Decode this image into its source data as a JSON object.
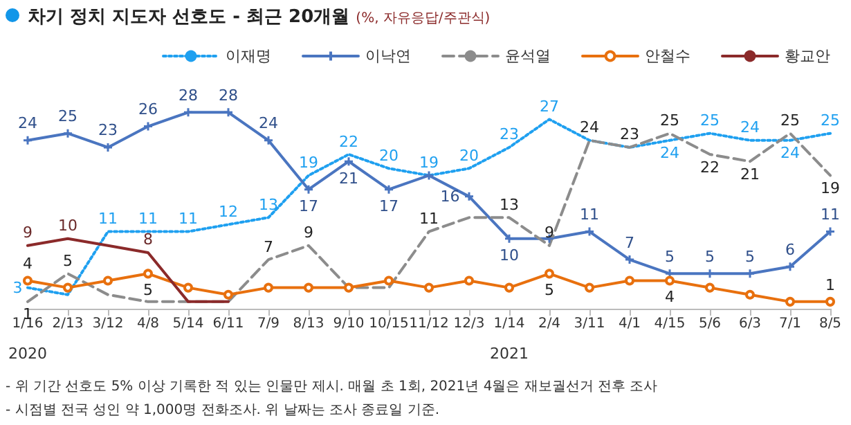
{
  "chart_data": {
    "type": "line",
    "title": "차기 정치 지도자 선호도 - 최근 20개월",
    "subtitle": "(%, 자유응답/주관식)",
    "categories": [
      "1/16",
      "2/13",
      "3/12",
      "4/8",
      "5/14",
      "6/11",
      "7/9",
      "8/13",
      "9/10",
      "10/15",
      "11/12",
      "12/3",
      "1/14",
      "2/4",
      "3/11",
      "4/1",
      "4/15",
      "5/6",
      "6/3",
      "7/1",
      "8/5"
    ],
    "legend": "top right",
    "grid": false,
    "series": [
      {
        "name": "이재명",
        "color": "#1fa0f0",
        "line_style": "dotted",
        "marker": "none",
        "values": [
          3,
          2,
          11,
          11,
          11,
          12,
          13,
          19,
          22,
          20,
          19,
          20,
          23,
          27,
          24,
          23,
          24,
          25,
          24,
          24,
          25
        ],
        "value_labels": [
          "3",
          null,
          "11",
          "11",
          "11",
          "12",
          "13",
          "19",
          "22",
          "20",
          "19",
          "20",
          "23",
          "27",
          null,
          null,
          "24",
          "25",
          "24",
          "24",
          "25"
        ]
      },
      {
        "name": "이낙연",
        "color": "#4a75c0",
        "line_style": "solid",
        "marker": "cross",
        "values": [
          24,
          25,
          23,
          26,
          28,
          28,
          24,
          17,
          21,
          17,
          19,
          16,
          10,
          10,
          11,
          7,
          5,
          5,
          5,
          6,
          11
        ],
        "value_labels": [
          "24",
          "25",
          "23",
          "26",
          "28",
          "28",
          "24",
          "17",
          "21",
          "17",
          null,
          "16",
          "10",
          null,
          "11",
          "7",
          "5",
          "5",
          "5",
          "6",
          "11"
        ]
      },
      {
        "name": "윤석열",
        "color": "#8c8c8c",
        "line_style": "dashed",
        "marker": "none",
        "values": [
          1,
          5,
          2,
          1,
          1,
          1,
          7,
          9,
          3,
          3,
          11,
          13,
          13,
          9,
          24,
          23,
          25,
          22,
          21,
          25,
          19
        ],
        "value_labels": [
          "1",
          "5",
          null,
          null,
          null,
          null,
          "7",
          "9",
          null,
          null,
          "11",
          null,
          "13",
          "9",
          "24",
          "23",
          "25",
          "22",
          "21",
          "25",
          "19"
        ]
      },
      {
        "name": "안철수",
        "color": "#e8700e",
        "line_style": "solid",
        "marker": "circle",
        "values": [
          4,
          3,
          4,
          5,
          3,
          2,
          3,
          3,
          3,
          4,
          3,
          4,
          3,
          5,
          3,
          4,
          4,
          3,
          2,
          1,
          1
        ],
        "value_labels": [
          "4",
          null,
          null,
          "5",
          null,
          null,
          null,
          null,
          null,
          null,
          null,
          null,
          null,
          "5",
          null,
          null,
          "4",
          null,
          null,
          null,
          "1"
        ]
      },
      {
        "name": "황교안",
        "color": "#8b2a2a",
        "line_style": "solid",
        "marker": "none",
        "values": [
          9,
          10,
          9,
          8,
          1,
          1,
          null,
          null,
          null,
          null,
          null,
          null,
          null,
          null,
          null,
          null,
          null,
          null,
          null,
          null,
          null
        ],
        "value_labels": [
          "9",
          "10",
          null,
          "8",
          null,
          null,
          null,
          null,
          null,
          null,
          null,
          null,
          null,
          null,
          null,
          null,
          null,
          null,
          null,
          null,
          null
        ]
      }
    ],
    "annotations": [
      "2020",
      "2021",
      "- 위 기간 선호도 5% 이상 기록한 적 있는 인물만 제시. 매월 초 1회, 2021년 4월은 재보궐선거 전후 조사",
      "- 시점별 전국 성인 약 1,000명 전화조사. 위 날짜는 조사 종료일 기준."
    ]
  }
}
